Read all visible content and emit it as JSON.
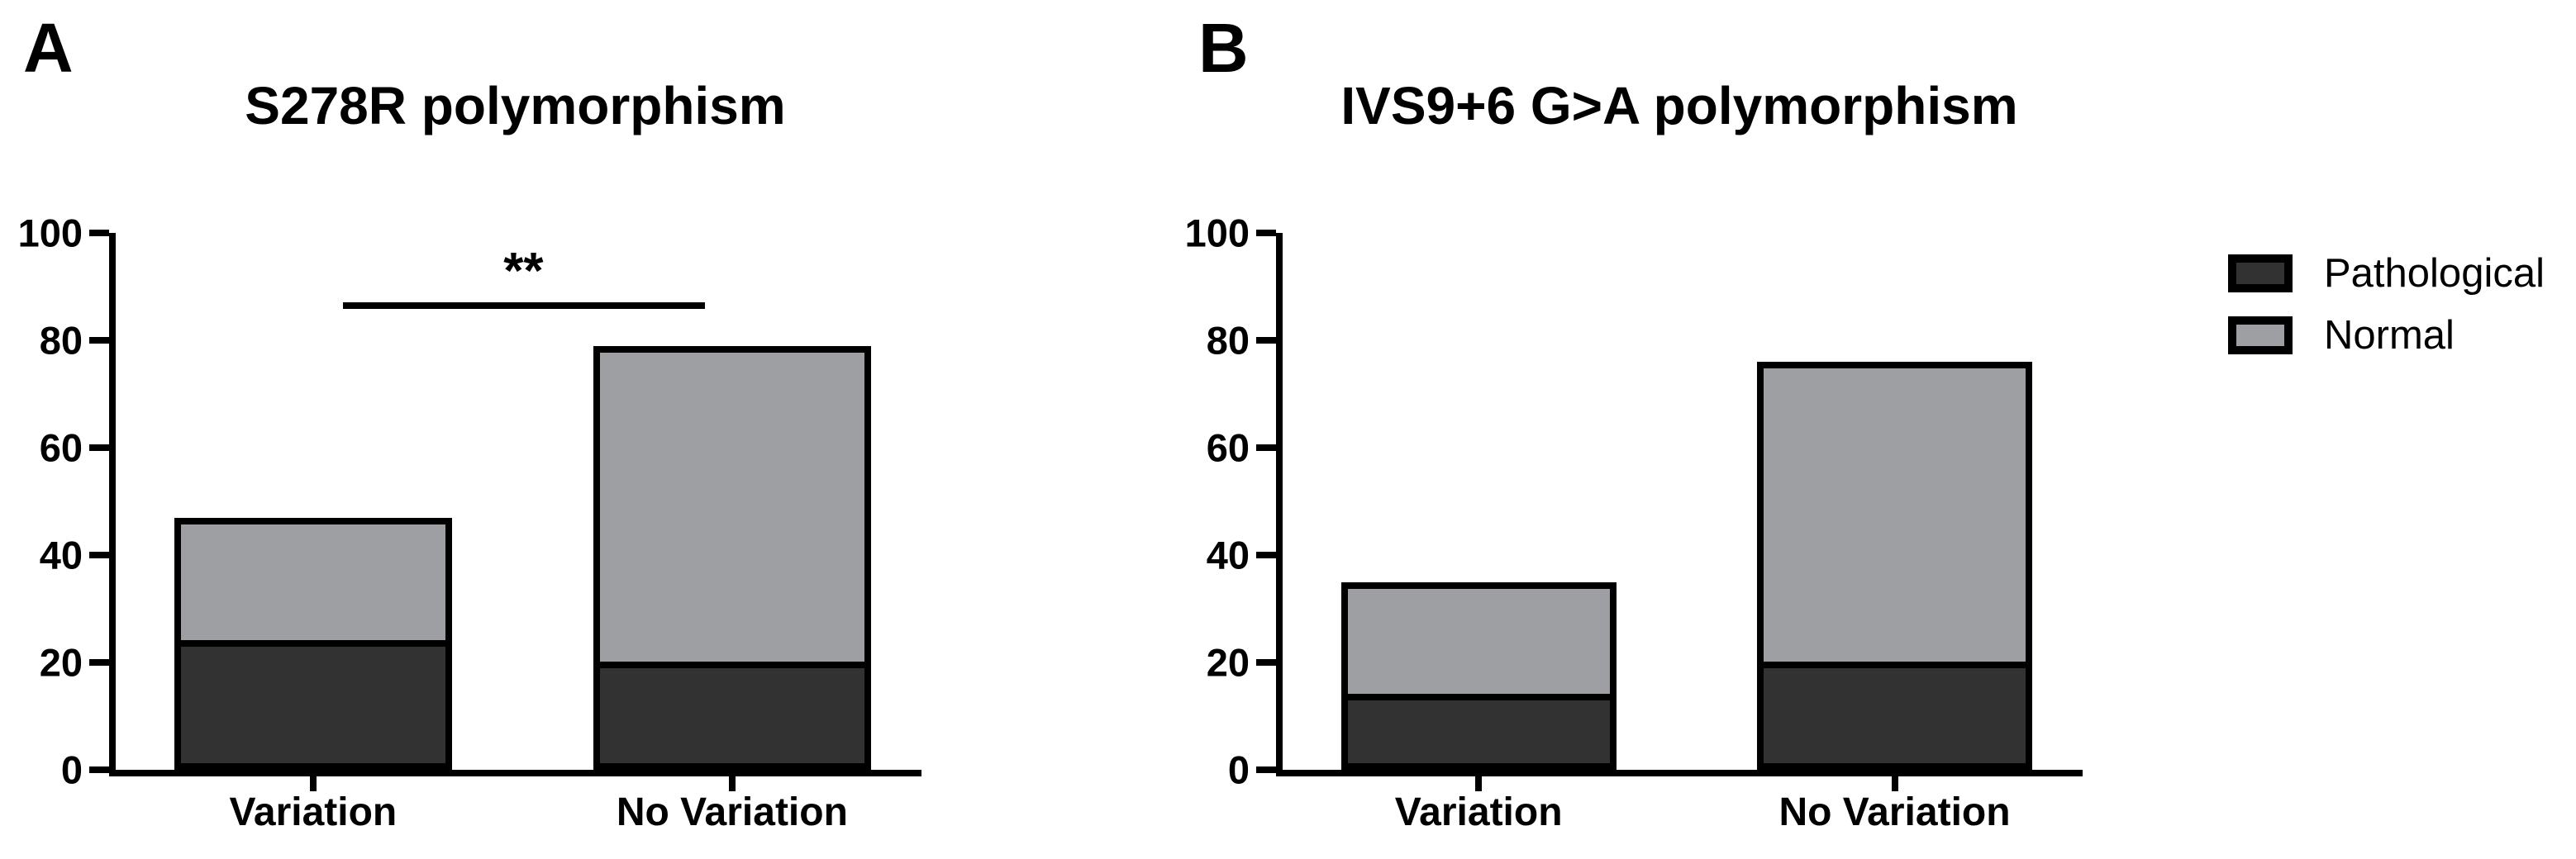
{
  "figure": {
    "background": "#ffffff",
    "legend": {
      "items": [
        {
          "label": "Pathological",
          "color": "#323232"
        },
        {
          "label": "Normal",
          "color": "#9E9FA2"
        }
      ]
    }
  },
  "chart_data": [
    {
      "type": "bar",
      "stacked": true,
      "panel": "A",
      "title": "S278R polymorphism",
      "categories": [
        "Variation",
        "No Variation"
      ],
      "series": [
        {
          "name": "Pathological",
          "values": [
            23,
            19
          ],
          "color": "#323232"
        },
        {
          "name": "Normal",
          "values": [
            24,
            60
          ],
          "color": "#9E9FA2"
        }
      ],
      "totals": [
        47,
        79
      ],
      "ylim": [
        0,
        100
      ],
      "yticks": [
        0,
        20,
        40,
        60,
        80,
        100
      ],
      "grid": false,
      "legend_position": "right",
      "significance": {
        "label": "**",
        "from": "Variation",
        "to": "No Variation",
        "height": 87
      }
    },
    {
      "type": "bar",
      "stacked": true,
      "panel": "B",
      "title": "IVS9+6 G>A polymorphism",
      "categories": [
        "Variation",
        "No Variation"
      ],
      "series": [
        {
          "name": "Pathological",
          "values": [
            13,
            19
          ],
          "color": "#323232"
        },
        {
          "name": "Normal",
          "values": [
            22,
            57
          ],
          "color": "#9E9FA2"
        }
      ],
      "totals": [
        35,
        76
      ],
      "ylim": [
        0,
        100
      ],
      "yticks": [
        0,
        20,
        40,
        60,
        80,
        100
      ],
      "grid": false,
      "significance": null
    }
  ]
}
